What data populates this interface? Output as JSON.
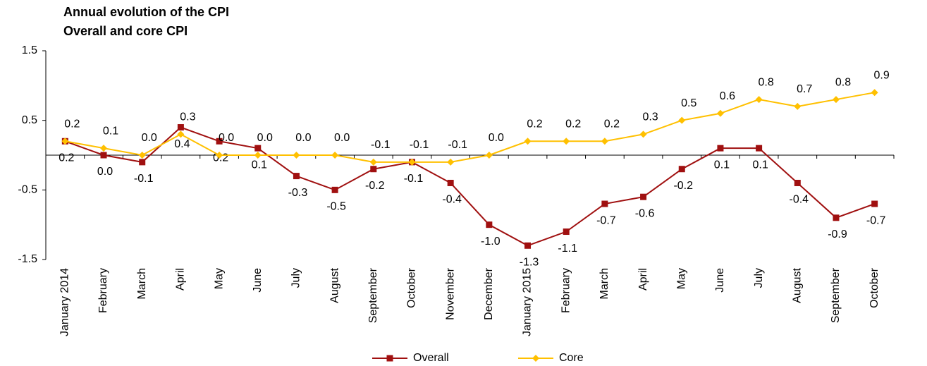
{
  "chart_data": {
    "type": "line",
    "title": "Annual evolution of the CPI",
    "subtitle": "Overall and core CPI",
    "categories": [
      "January 2014",
      "February",
      "March",
      "April",
      "May",
      "June",
      "July",
      "August",
      "September",
      "October",
      "November",
      "December",
      "January 2015",
      "February",
      "March",
      "April",
      "May",
      "June",
      "July",
      "August",
      "September",
      "October"
    ],
    "series": [
      {
        "name": "Overall",
        "color": "#a01010",
        "marker": "square",
        "values": [
          0.2,
          0.0,
          -0.1,
          0.4,
          0.2,
          0.1,
          -0.3,
          -0.5,
          -0.2,
          -0.1,
          -0.4,
          -1.0,
          -1.3,
          -1.1,
          -0.7,
          -0.6,
          -0.2,
          0.1,
          0.1,
          -0.4,
          -0.9,
          -0.7
        ],
        "value_labels": [
          "0.2",
          "0.0",
          "-0.1",
          "0.4",
          "0.2",
          "0.1",
          "-0.3",
          "-0.5",
          "-0.2",
          "-0.1",
          "-0.4",
          "-1.0",
          "-1.3",
          "-1.1",
          "-0.7",
          "-0.6",
          "-0.2",
          "0.1",
          "0.1",
          "-0.4",
          "-0.9",
          "-0.7"
        ]
      },
      {
        "name": "Core",
        "color": "#ffc000",
        "marker": "diamond",
        "values": [
          0.2,
          0.1,
          0.0,
          0.3,
          0.0,
          0.0,
          0.0,
          0.0,
          -0.1,
          -0.1,
          -0.1,
          0.0,
          0.2,
          0.2,
          0.2,
          0.3,
          0.5,
          0.6,
          0.8,
          0.7,
          0.8,
          0.9
        ],
        "value_labels": [
          "0.2",
          "0.1",
          "0.0",
          "0.3",
          "0.0",
          "0.0",
          "0.0",
          "0.0",
          "-0.1",
          "-0.1",
          "-0.1",
          "0.0",
          "0.2",
          "0.2",
          "0.2",
          "0.3",
          "0.5",
          "0.6",
          "0.8",
          "0.7",
          "0.8",
          "0.9"
        ]
      }
    ],
    "ylim": [
      -1.5,
      1.5
    ],
    "yticks": [
      -1.5,
      -0.5,
      0.5,
      1.5
    ],
    "grid": false,
    "legend": "bottom"
  }
}
